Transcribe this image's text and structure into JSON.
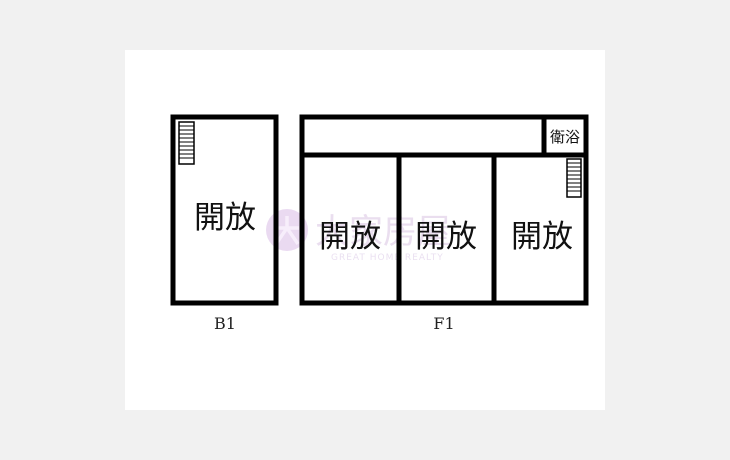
{
  "plan": {
    "floors": [
      {
        "name": "B1",
        "rooms": [
          {
            "label": "開放"
          }
        ]
      },
      {
        "name": "F1",
        "rooms": [
          {
            "label": "衛浴"
          },
          {
            "label": "開放"
          },
          {
            "label": "開放"
          },
          {
            "label": "開放"
          }
        ]
      }
    ]
  },
  "watermark": {
    "brand": "大家房屋",
    "tagline": "GREAT HOME REALTY",
    "color": "#e3d3ea"
  }
}
